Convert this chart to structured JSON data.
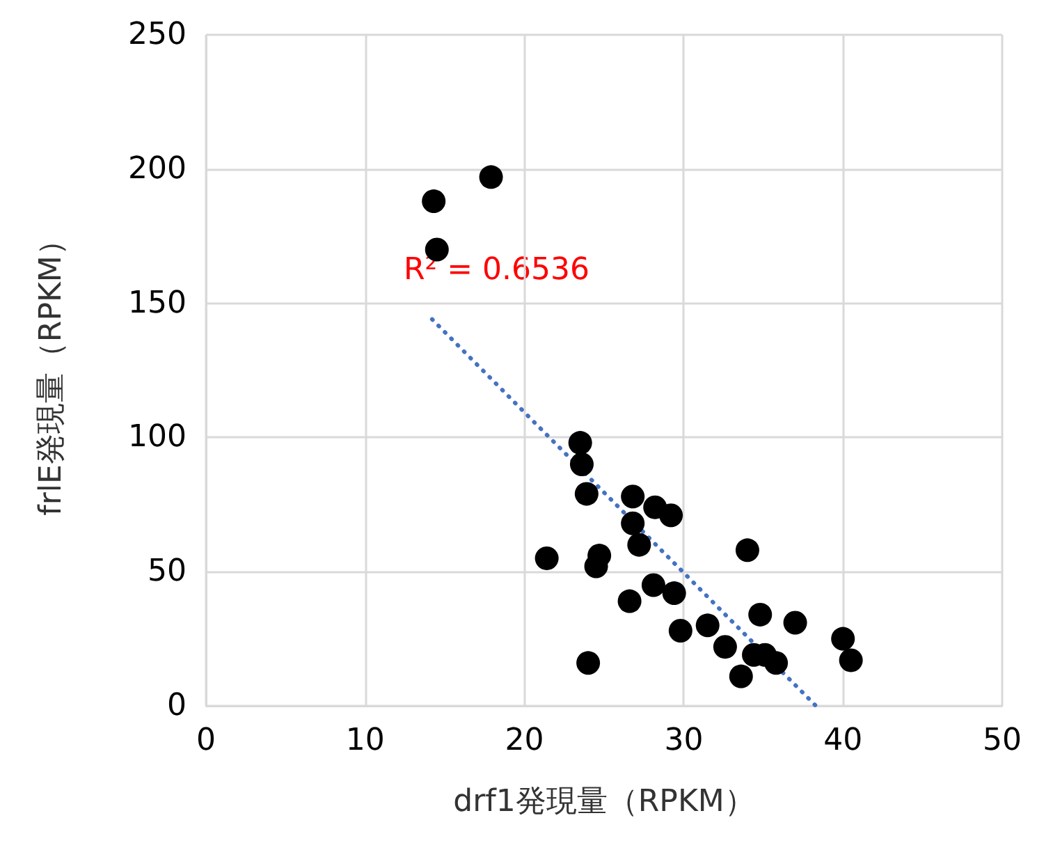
{
  "chart_data": {
    "type": "scatter",
    "xlabel": "drf1発現量（RPKM）",
    "ylabel": "frlE発現量（RPKM）",
    "xlim": [
      0,
      50
    ],
    "xticks": [
      0,
      10,
      20,
      30,
      40,
      50
    ],
    "ylim": [
      0,
      250
    ],
    "yticks": [
      0,
      50,
      100,
      150,
      200,
      250
    ],
    "grid": true,
    "marker": "circle",
    "series": [
      {
        "color": "#000000",
        "x": [
          14.3,
          17.9,
          14.5,
          23.5,
          23.6,
          23.9,
          21.4,
          24.7,
          24.5,
          26.8,
          28.2,
          29.2,
          26.8,
          27.2,
          26.6,
          28.1,
          29.4,
          29.8,
          31.5,
          32.6,
          34.0,
          34.8,
          37.0,
          33.6,
          34.4,
          35.1,
          35.8,
          40.0,
          40.5,
          24.0
        ],
        "values": [
          188,
          197,
          170,
          98,
          90,
          79,
          55,
          56,
          52,
          78,
          74,
          71,
          68,
          60,
          39,
          45,
          42,
          28,
          30,
          22,
          58,
          34,
          31,
          11,
          19,
          19,
          16,
          25,
          17,
          16
        ]
      },
      {
        "type": "line",
        "color": "#4472c4",
        "line_style": "dotted",
        "marker": "none",
        "x": [
          14.2,
          38.3
        ],
        "values": [
          144,
          0
        ]
      }
    ],
    "annotations": [
      "R² = 0.6536"
    ]
  }
}
